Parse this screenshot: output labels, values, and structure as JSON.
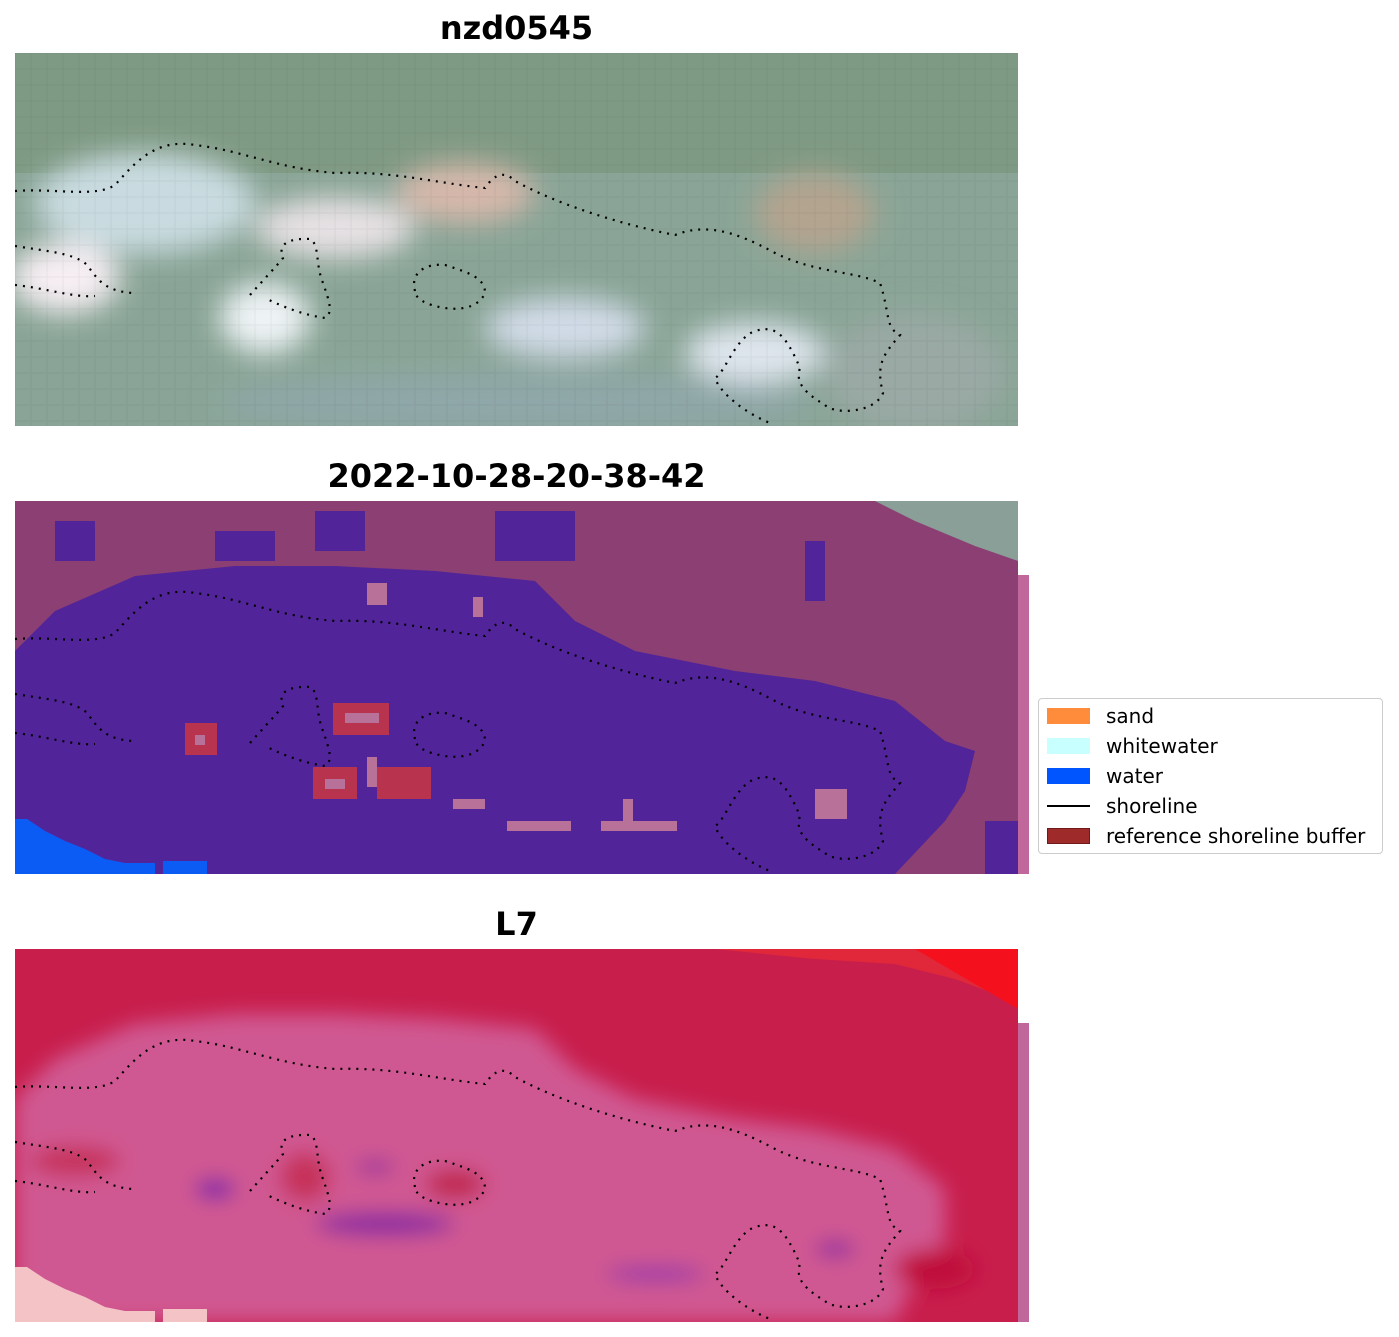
{
  "panels": [
    {
      "title": "nzd0545"
    },
    {
      "title": "2022-10-28-20-38-42"
    },
    {
      "title": "L7"
    }
  ],
  "legend": {
    "items": [
      {
        "label": "sand",
        "color": "#ff8c3a",
        "kind": "patch"
      },
      {
        "label": "whitewater",
        "color": "#c8ffff",
        "kind": "patch"
      },
      {
        "label": "water",
        "color": "#0055ff",
        "kind": "patch"
      },
      {
        "label": "shoreline",
        "color": "#000000",
        "kind": "line"
      },
      {
        "label": "reference shoreline buffer",
        "color": "#9e2a2a",
        "kind": "patch"
      }
    ]
  },
  "colors": {
    "rgb_background": "#8fa69c",
    "class_background": "#8b3f73",
    "class_water_overlay": "#52249a",
    "ndwi_background": "#c81e4c",
    "ndwi_inner": "#d05892",
    "shoreline": "#000000"
  }
}
